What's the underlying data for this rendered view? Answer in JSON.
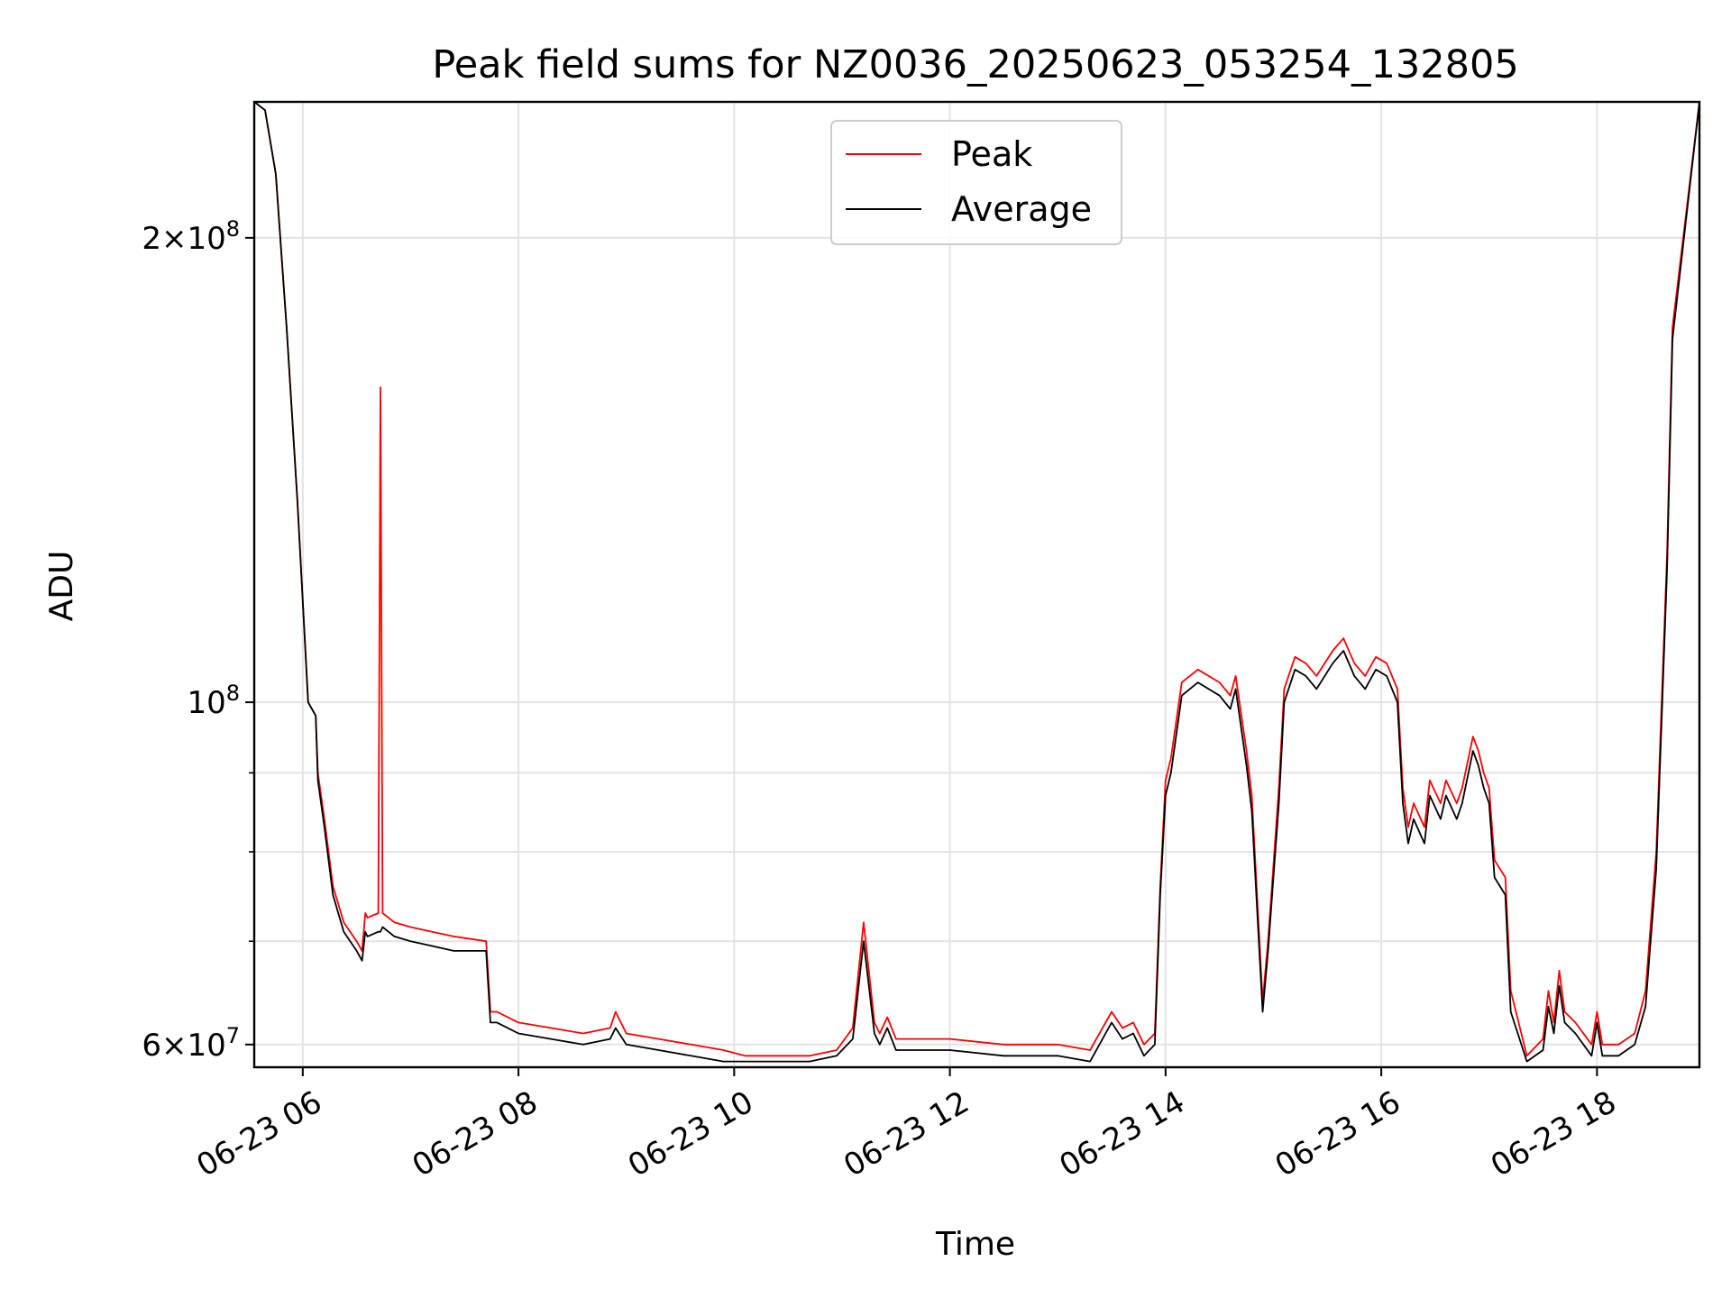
{
  "chart_data": {
    "type": "line",
    "title": "Peak field sums for NZ0036_20250623_053254_132805",
    "xlabel": "Time",
    "ylabel": "ADU",
    "x_scale": "time (hours)",
    "y_scale": "log",
    "xlim": [
      "06-23 05:33",
      "06-23 18:57"
    ],
    "ylim": [
      58000000,
      245000000
    ],
    "grid": true,
    "legend_position": "top-center",
    "x_ticks": [
      {
        "value": 6,
        "label": "06-23 06"
      },
      {
        "value": 8,
        "label": "06-23 08"
      },
      {
        "value": 10,
        "label": "06-23 10"
      },
      {
        "value": 12,
        "label": "06-23 12"
      },
      {
        "value": 14,
        "label": "06-23 14"
      },
      {
        "value": 16,
        "label": "06-23 16"
      },
      {
        "value": 18,
        "label": "06-23 18"
      }
    ],
    "y_major_ticks": [
      {
        "value": 60000000,
        "mant": "6",
        "exp": "7"
      },
      {
        "value": 100000000,
        "mant": "",
        "exp": "8"
      },
      {
        "value": 200000000,
        "mant": "2",
        "exp": "8"
      }
    ],
    "y_minor_ticks": [
      70000000,
      80000000,
      90000000
    ],
    "x_hours": [
      5.55,
      5.65,
      5.75,
      5.85,
      5.95,
      6.05,
      6.12,
      6.14,
      6.2,
      6.28,
      6.38,
      6.5,
      6.55,
      6.58,
      6.6,
      6.7,
      6.72,
      6.74,
      6.85,
      7.0,
      7.2,
      7.4,
      7.7,
      7.74,
      7.8,
      8.0,
      8.3,
      8.6,
      8.85,
      8.9,
      9.0,
      9.3,
      9.6,
      9.9,
      10.1,
      10.4,
      10.7,
      10.95,
      11.1,
      11.2,
      11.3,
      11.35,
      11.42,
      11.5,
      11.6,
      11.8,
      12.0,
      12.5,
      13.0,
      13.3,
      13.5,
      13.6,
      13.7,
      13.8,
      13.9,
      13.95,
      14.0,
      14.05,
      14.15,
      14.3,
      14.5,
      14.6,
      14.65,
      14.75,
      14.8,
      14.9,
      14.95,
      15.05,
      15.1,
      15.2,
      15.3,
      15.4,
      15.55,
      15.65,
      15.75,
      15.85,
      15.95,
      16.05,
      16.15,
      16.2,
      16.25,
      16.3,
      16.4,
      16.45,
      16.55,
      16.6,
      16.7,
      16.75,
      16.85,
      16.9,
      16.95,
      17.0,
      17.05,
      17.15,
      17.2,
      17.35,
      17.5,
      17.55,
      17.6,
      17.65,
      17.7,
      17.8,
      17.95,
      18.0,
      18.05,
      18.2,
      18.35,
      18.45,
      18.55,
      18.65,
      18.7,
      18.95
    ],
    "series": [
      {
        "name": "Peak",
        "color": "#ff0000",
        "values": [
          245000000,
          242000000,
          220000000,
          175000000,
          135000000,
          100000000,
          98000000,
          90000000,
          84000000,
          76000000,
          72000000,
          70000000,
          69000000,
          73000000,
          72500000,
          73000000,
          160000000,
          73000000,
          72000000,
          71500000,
          71000000,
          70500000,
          70000000,
          63000000,
          63000000,
          62000000,
          61500000,
          61000000,
          61500000,
          63000000,
          61000000,
          60500000,
          60000000,
          59500000,
          59000000,
          59000000,
          59000000,
          59500000,
          61500000,
          72000000,
          62000000,
          61000000,
          62500000,
          60500000,
          60500000,
          60500000,
          60500000,
          60000000,
          60000000,
          59500000,
          63000000,
          61500000,
          62000000,
          60000000,
          61000000,
          76000000,
          89000000,
          92000000,
          103000000,
          105000000,
          103000000,
          101000000,
          104000000,
          93000000,
          87000000,
          64000000,
          70000000,
          88000000,
          102000000,
          107000000,
          106000000,
          104000000,
          108000000,
          110000000,
          106000000,
          104000000,
          107000000,
          106000000,
          102000000,
          88000000,
          83000000,
          86000000,
          83000000,
          89000000,
          86000000,
          89000000,
          86000000,
          88000000,
          95000000,
          93000000,
          90000000,
          88000000,
          79000000,
          77000000,
          65000000,
          59000000,
          60500000,
          65000000,
          62000000,
          67000000,
          63000000,
          62000000,
          60000000,
          63000000,
          60000000,
          60000000,
          61000000,
          65000000,
          80000000,
          125000000,
          175000000,
          245000000
        ]
      },
      {
        "name": "Average",
        "color": "#000000",
        "values": [
          245000000,
          242000000,
          220000000,
          175000000,
          135000000,
          100000000,
          98000000,
          89000000,
          83000000,
          75000000,
          71000000,
          69000000,
          68000000,
          71000000,
          70500000,
          71000000,
          71000000,
          71500000,
          70500000,
          70000000,
          69500000,
          69000000,
          69000000,
          62000000,
          62000000,
          61000000,
          60500000,
          60000000,
          60500000,
          61500000,
          60000000,
          59500000,
          59000000,
          58500000,
          58500000,
          58500000,
          58500000,
          59000000,
          60500000,
          70000000,
          61000000,
          60000000,
          61500000,
          59500000,
          59500000,
          59500000,
          59500000,
          59000000,
          59000000,
          58500000,
          62000000,
          60500000,
          61000000,
          59000000,
          60000000,
          75000000,
          87000000,
          90000000,
          101000000,
          103000000,
          101000000,
          99000000,
          102000000,
          91000000,
          85000000,
          63000000,
          69000000,
          86000000,
          100000000,
          105000000,
          104000000,
          102000000,
          106000000,
          108000000,
          104000000,
          102000000,
          105000000,
          104000000,
          100000000,
          86000000,
          81000000,
          84000000,
          81000000,
          87000000,
          84000000,
          87000000,
          84000000,
          86000000,
          93000000,
          91000000,
          88000000,
          86000000,
          77000000,
          75000000,
          63000000,
          58500000,
          59500000,
          63500000,
          61000000,
          65500000,
          62000000,
          61000000,
          59000000,
          62000000,
          59000000,
          59000000,
          60000000,
          63500000,
          78000000,
          122000000,
          172000000,
          245000000
        ]
      }
    ]
  }
}
